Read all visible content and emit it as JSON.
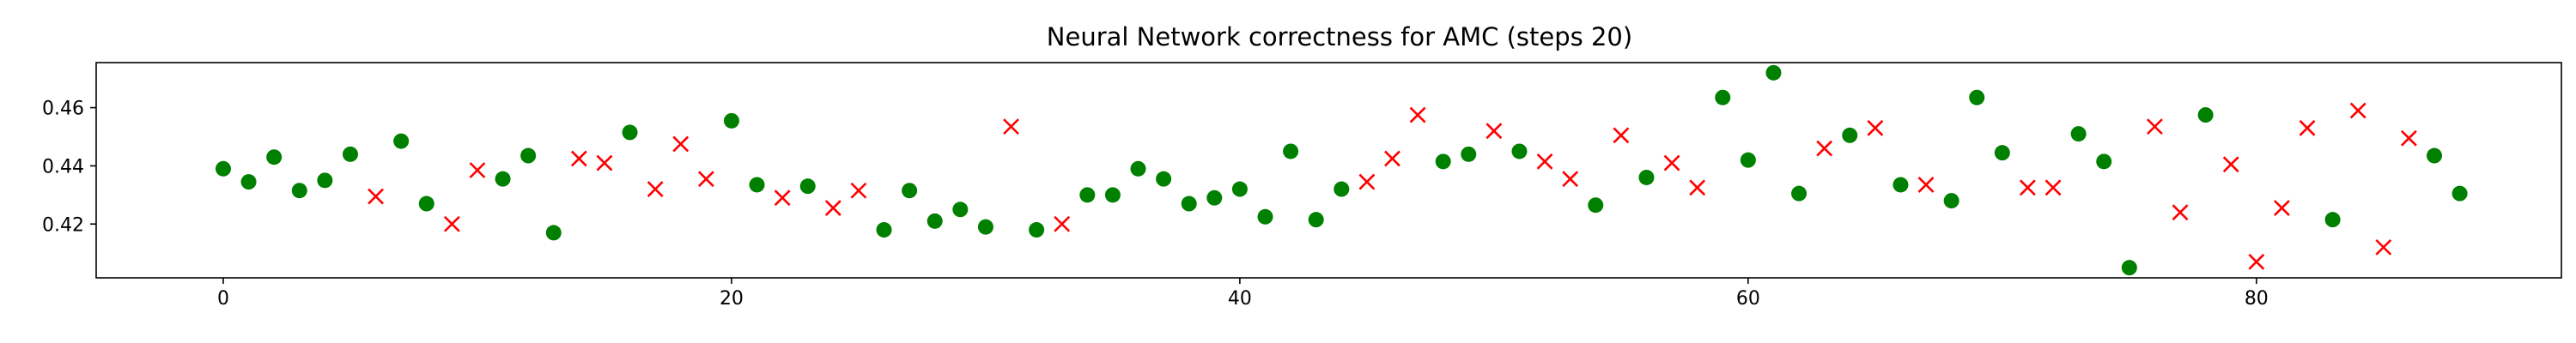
{
  "chart_data": {
    "type": "scatter",
    "title": "Neural Network correctness for AMC (steps 20)",
    "xlabel": "",
    "ylabel": "",
    "xlim": [
      -5,
      92
    ],
    "ylim": [
      0.4015,
      0.4755
    ],
    "xticks": [
      0,
      20,
      40,
      60,
      80
    ],
    "yticks": [
      0.42,
      0.44,
      0.46
    ],
    "ytick_labels": [
      "0.42",
      "0.44",
      "0.46"
    ],
    "grid": false,
    "legend": "none",
    "colors": {
      "correct": "#008000",
      "incorrect": "#ff0000"
    },
    "points": [
      {
        "x": 0,
        "y": 0.439,
        "correct": true
      },
      {
        "x": 1,
        "y": 0.4345,
        "correct": true
      },
      {
        "x": 2,
        "y": 0.443,
        "correct": true
      },
      {
        "x": 3,
        "y": 0.4315,
        "correct": true
      },
      {
        "x": 4,
        "y": 0.435,
        "correct": true
      },
      {
        "x": 5,
        "y": 0.444,
        "correct": true
      },
      {
        "x": 6,
        "y": 0.4295,
        "correct": false
      },
      {
        "x": 7,
        "y": 0.4485,
        "correct": true
      },
      {
        "x": 8,
        "y": 0.427,
        "correct": true
      },
      {
        "x": 9,
        "y": 0.42,
        "correct": false
      },
      {
        "x": 10,
        "y": 0.4385,
        "correct": false
      },
      {
        "x": 11,
        "y": 0.4355,
        "correct": true
      },
      {
        "x": 12,
        "y": 0.4435,
        "correct": true
      },
      {
        "x": 13,
        "y": 0.417,
        "correct": true
      },
      {
        "x": 14,
        "y": 0.4425,
        "correct": false
      },
      {
        "x": 15,
        "y": 0.441,
        "correct": false
      },
      {
        "x": 16,
        "y": 0.4515,
        "correct": true
      },
      {
        "x": 17,
        "y": 0.432,
        "correct": false
      },
      {
        "x": 18,
        "y": 0.4475,
        "correct": false
      },
      {
        "x": 19,
        "y": 0.4355,
        "correct": false
      },
      {
        "x": 20,
        "y": 0.4555,
        "correct": true
      },
      {
        "x": 21,
        "y": 0.4335,
        "correct": true
      },
      {
        "x": 22,
        "y": 0.429,
        "correct": false
      },
      {
        "x": 23,
        "y": 0.433,
        "correct": true
      },
      {
        "x": 24,
        "y": 0.4255,
        "correct": false
      },
      {
        "x": 25,
        "y": 0.4315,
        "correct": false
      },
      {
        "x": 26,
        "y": 0.418,
        "correct": true
      },
      {
        "x": 27,
        "y": 0.4315,
        "correct": true
      },
      {
        "x": 28,
        "y": 0.421,
        "correct": true
      },
      {
        "x": 29,
        "y": 0.425,
        "correct": true
      },
      {
        "x": 30,
        "y": 0.419,
        "correct": true
      },
      {
        "x": 31,
        "y": 0.4535,
        "correct": false
      },
      {
        "x": 32,
        "y": 0.418,
        "correct": true
      },
      {
        "x": 33,
        "y": 0.42,
        "correct": false
      },
      {
        "x": 34,
        "y": 0.43,
        "correct": true
      },
      {
        "x": 35,
        "y": 0.43,
        "correct": true
      },
      {
        "x": 36,
        "y": 0.439,
        "correct": true
      },
      {
        "x": 37,
        "y": 0.4355,
        "correct": true
      },
      {
        "x": 38,
        "y": 0.427,
        "correct": true
      },
      {
        "x": 39,
        "y": 0.429,
        "correct": true
      },
      {
        "x": 40,
        "y": 0.432,
        "correct": true
      },
      {
        "x": 41,
        "y": 0.4225,
        "correct": true
      },
      {
        "x": 42,
        "y": 0.445,
        "correct": true
      },
      {
        "x": 43,
        "y": 0.4215,
        "correct": true
      },
      {
        "x": 44,
        "y": 0.432,
        "correct": true
      },
      {
        "x": 45,
        "y": 0.4345,
        "correct": false
      },
      {
        "x": 46,
        "y": 0.4425,
        "correct": false
      },
      {
        "x": 47,
        "y": 0.4575,
        "correct": false
      },
      {
        "x": 48,
        "y": 0.4415,
        "correct": true
      },
      {
        "x": 49,
        "y": 0.444,
        "correct": true
      },
      {
        "x": 50,
        "y": 0.452,
        "correct": false
      },
      {
        "x": 51,
        "y": 0.445,
        "correct": true
      },
      {
        "x": 52,
        "y": 0.4415,
        "correct": false
      },
      {
        "x": 53,
        "y": 0.4355,
        "correct": false
      },
      {
        "x": 54,
        "y": 0.4265,
        "correct": true
      },
      {
        "x": 55,
        "y": 0.4505,
        "correct": false
      },
      {
        "x": 56,
        "y": 0.436,
        "correct": true
      },
      {
        "x": 57,
        "y": 0.441,
        "correct": false
      },
      {
        "x": 58,
        "y": 0.4325,
        "correct": false
      },
      {
        "x": 59,
        "y": 0.4635,
        "correct": true
      },
      {
        "x": 60,
        "y": 0.442,
        "correct": true
      },
      {
        "x": 61,
        "y": 0.472,
        "correct": true
      },
      {
        "x": 62,
        "y": 0.4305,
        "correct": true
      },
      {
        "x": 63,
        "y": 0.446,
        "correct": false
      },
      {
        "x": 64,
        "y": 0.4505,
        "correct": true
      },
      {
        "x": 65,
        "y": 0.453,
        "correct": false
      },
      {
        "x": 66,
        "y": 0.4335,
        "correct": true
      },
      {
        "x": 67,
        "y": 0.4335,
        "correct": false
      },
      {
        "x": 68,
        "y": 0.428,
        "correct": true
      },
      {
        "x": 69,
        "y": 0.4635,
        "correct": true
      },
      {
        "x": 70,
        "y": 0.4445,
        "correct": true
      },
      {
        "x": 71,
        "y": 0.4325,
        "correct": false
      },
      {
        "x": 72,
        "y": 0.4325,
        "correct": false
      },
      {
        "x": 73,
        "y": 0.451,
        "correct": true
      },
      {
        "x": 74,
        "y": 0.4415,
        "correct": true
      },
      {
        "x": 75,
        "y": 0.405,
        "correct": true
      },
      {
        "x": 76,
        "y": 0.4535,
        "correct": false
      },
      {
        "x": 77,
        "y": 0.424,
        "correct": false
      },
      {
        "x": 78,
        "y": 0.4575,
        "correct": true
      },
      {
        "x": 79,
        "y": 0.4405,
        "correct": false
      },
      {
        "x": 80,
        "y": 0.407,
        "correct": false
      },
      {
        "x": 81,
        "y": 0.4255,
        "correct": false
      },
      {
        "x": 82,
        "y": 0.453,
        "correct": false
      },
      {
        "x": 83,
        "y": 0.4215,
        "correct": true
      },
      {
        "x": 84,
        "y": 0.459,
        "correct": false
      },
      {
        "x": 85,
        "y": 0.412,
        "correct": false
      },
      {
        "x": 86,
        "y": 0.4495,
        "correct": false
      },
      {
        "x": 87,
        "y": 0.4435,
        "correct": true
      },
      {
        "x": 88,
        "y": 0.4305,
        "correct": true
      }
    ]
  }
}
